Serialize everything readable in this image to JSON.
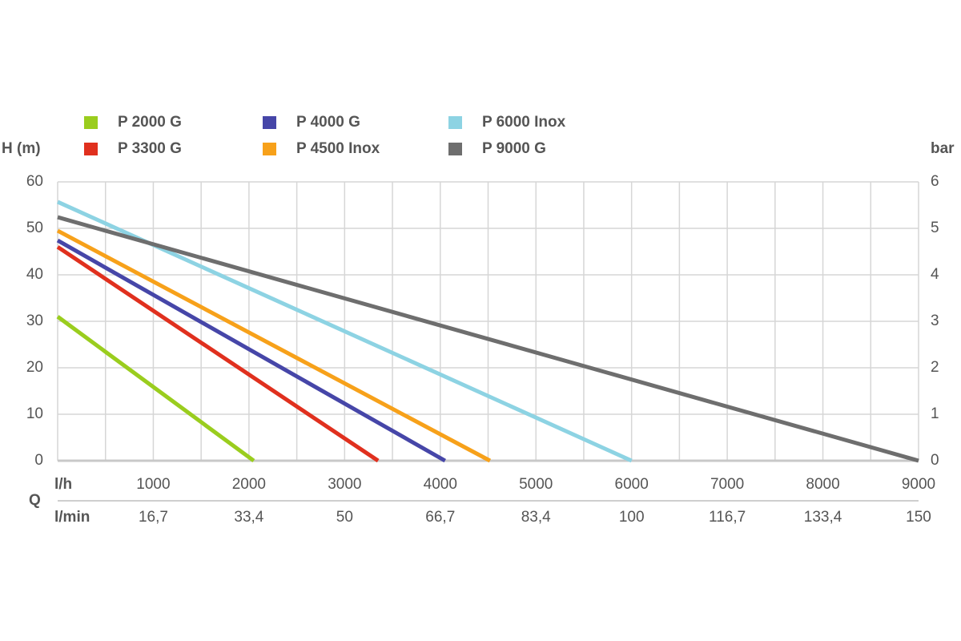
{
  "chart_data": {
    "type": "line",
    "y_label": "H (m)",
    "y2_label": "bar",
    "x_label": "Q",
    "x_unit": "l/h",
    "x2_unit": "l/min",
    "series": [
      {
        "name": "P 2000 G",
        "color": "#9acd1e",
        "x": [
          0,
          2050
        ],
        "values": [
          31,
          0
        ]
      },
      {
        "name": "P 3300 G",
        "color": "#e0301e",
        "x": [
          0,
          3350
        ],
        "values": [
          46,
          0
        ]
      },
      {
        "name": "P 4000 G",
        "color": "#4646a8",
        "x": [
          0,
          4050
        ],
        "values": [
          47.4,
          0
        ]
      },
      {
        "name": "P 4500 Inox",
        "color": "#f7a11a",
        "x": [
          0,
          4520
        ],
        "values": [
          49.5,
          0
        ]
      },
      {
        "name": "P 6000 Inox",
        "color": "#8dd3e3",
        "x": [
          0,
          6000
        ],
        "values": [
          55.7,
          0
        ]
      },
      {
        "name": "P 9000 G",
        "color": "#6e6e6e",
        "x": [
          0,
          9000
        ],
        "values": [
          52.4,
          0
        ]
      }
    ],
    "xlim": [
      0,
      9000
    ],
    "xticks": [
      1000,
      2000,
      3000,
      4000,
      5000,
      6000,
      7000,
      8000,
      9000
    ],
    "x2ticks": [
      {
        "value": 1000,
        "label": "16,7"
      },
      {
        "value": 2000,
        "label": "33,4"
      },
      {
        "value": 3000,
        "label": "50"
      },
      {
        "value": 4000,
        "label": "66,7"
      },
      {
        "value": 5000,
        "label": "83,4"
      },
      {
        "value": 6000,
        "label": "100"
      },
      {
        "value": 7000,
        "label": "116,7"
      },
      {
        "value": 8000,
        "label": "133,4"
      },
      {
        "value": 9000,
        "label": "150"
      }
    ],
    "xminor_ticks": [
      500,
      1500,
      2500,
      3500,
      4500,
      5500,
      6500,
      7500,
      8500
    ],
    "ylim": [
      0,
      60
    ],
    "yticks": [
      0,
      10,
      20,
      30,
      40,
      50,
      60
    ],
    "y2lim": [
      0,
      6
    ],
    "y2ticks": [
      0,
      1,
      2,
      3,
      4,
      5,
      6
    ],
    "grid": true
  }
}
